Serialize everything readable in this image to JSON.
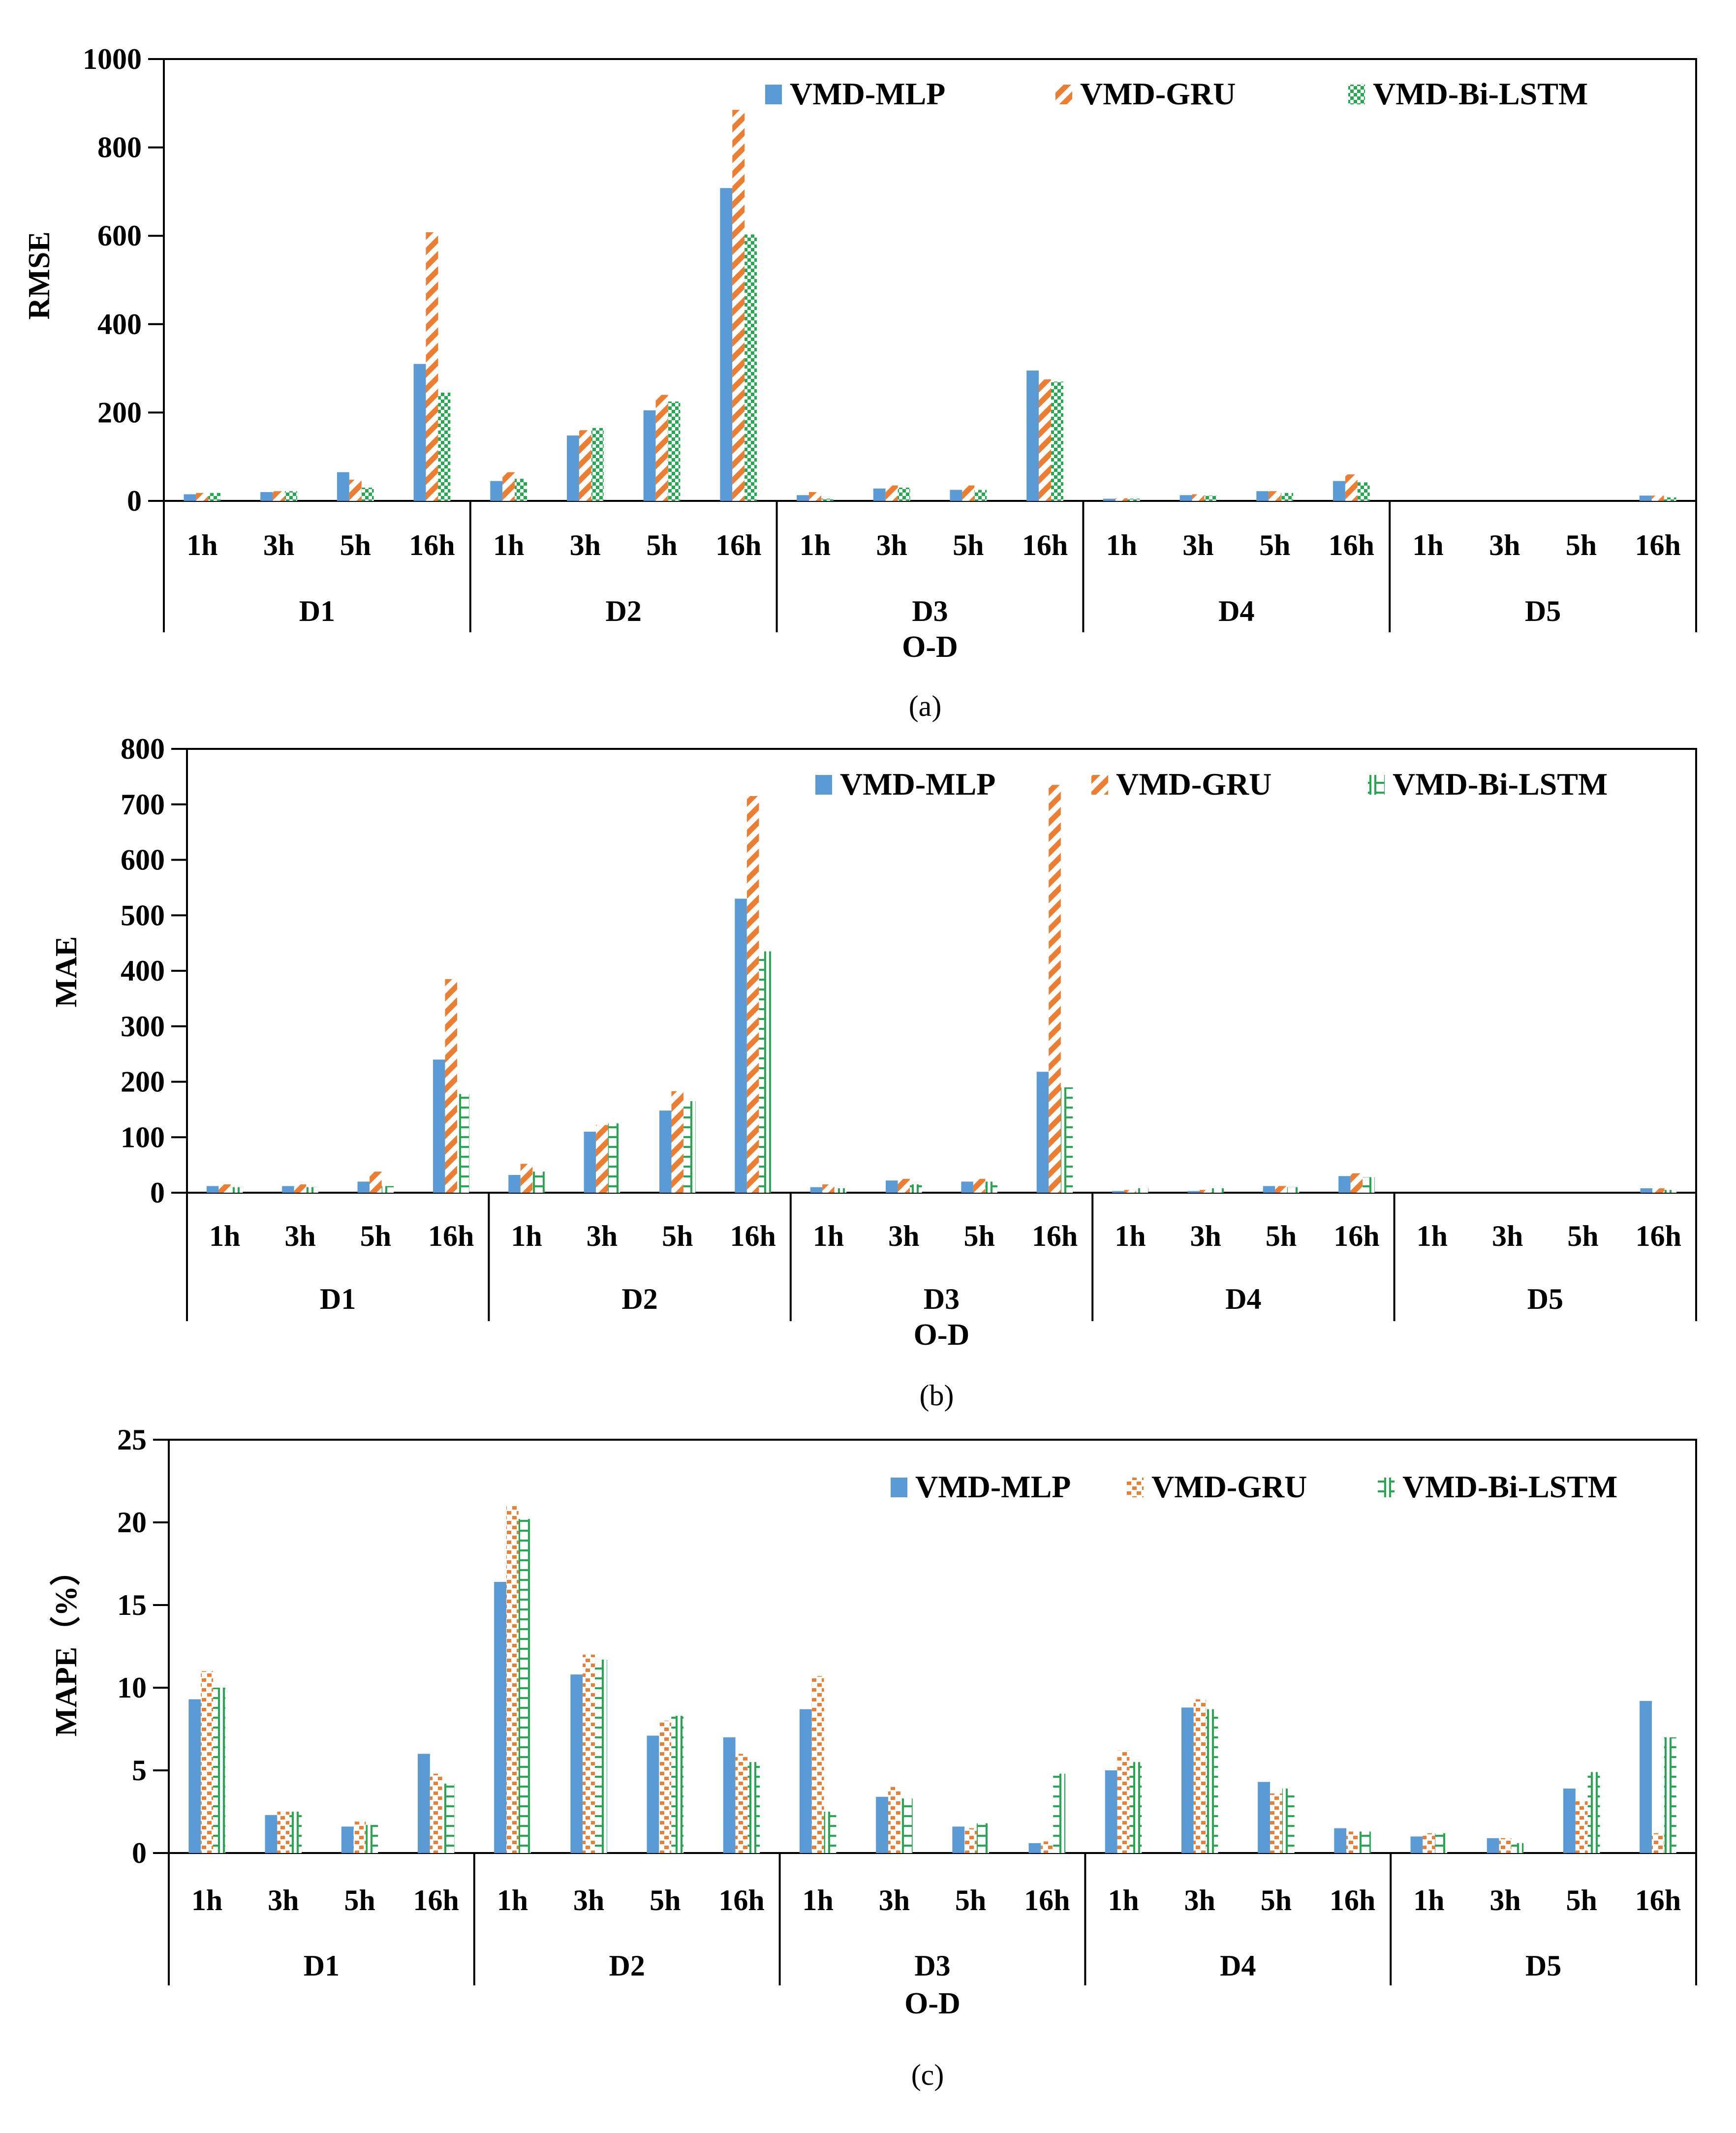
{
  "colors": {
    "mlp": "#5B9BD5",
    "gru": "#ED7D31",
    "bilstm": "#22AA4F",
    "axis": "#000000"
  },
  "chart_data": [
    {
      "type": "bar",
      "caption": "(a)",
      "ylabel": "RMSE",
      "xlabel": "O-D",
      "ylim": [
        0,
        1000
      ],
      "yticks": [
        "0",
        "200",
        "400",
        "600",
        "800",
        "1000"
      ],
      "ytick_values": [
        0,
        200,
        400,
        600,
        800,
        1000
      ],
      "groups": [
        "D1",
        "D2",
        "D3",
        "D4",
        "D5"
      ],
      "horizons": [
        "1h",
        "3h",
        "5h",
        "16h"
      ],
      "legend": [
        "VMD-MLP",
        "VMD-GRU",
        "VMD-Bi-LSTM"
      ],
      "series": [
        {
          "name": "VMD-MLP",
          "values": [
            15,
            20,
            65,
            310,
            45,
            148,
            205,
            708,
            13,
            28,
            25,
            295,
            5,
            13,
            22,
            45,
            0,
            0,
            0,
            12
          ]
        },
        {
          "name": "VMD-GRU",
          "values": [
            18,
            22,
            48,
            608,
            65,
            160,
            240,
            885,
            20,
            35,
            35,
            275,
            6,
            15,
            22,
            60,
            0,
            0,
            0,
            12
          ]
        },
        {
          "name": "VMD-Bi-LSTM",
          "values": [
            18,
            22,
            30,
            245,
            50,
            165,
            225,
            603,
            5,
            30,
            25,
            270,
            5,
            12,
            18,
            42,
            0,
            0,
            0,
            8
          ]
        }
      ]
    },
    {
      "type": "bar",
      "caption": "(b)",
      "ylabel": "MAE",
      "xlabel": "O-D",
      "ylim": [
        0,
        800
      ],
      "yticks": [
        "0",
        "100",
        "200",
        "300",
        "400",
        "500",
        "600",
        "700",
        "800"
      ],
      "ytick_values": [
        0,
        100,
        200,
        300,
        400,
        500,
        600,
        700,
        800
      ],
      "groups": [
        "D1",
        "D2",
        "D3",
        "D4",
        "D5"
      ],
      "horizons": [
        "1h",
        "3h",
        "5h",
        "16h"
      ],
      "legend": [
        "VMD-MLP",
        "VMD-GRU",
        "VMD-Bi-LSTM"
      ],
      "series": [
        {
          "name": "VMD-MLP",
          "values": [
            12,
            12,
            20,
            240,
            32,
            110,
            148,
            530,
            10,
            22,
            20,
            218,
            3,
            3,
            12,
            30,
            0,
            0,
            0,
            8
          ]
        },
        {
          "name": "VMD-GRU",
          "values": [
            15,
            15,
            38,
            385,
            52,
            122,
            183,
            715,
            15,
            25,
            25,
            735,
            5,
            5,
            12,
            35,
            0,
            0,
            0,
            8
          ]
        },
        {
          "name": "VMD-Bi-LSTM",
          "values": [
            10,
            10,
            12,
            178,
            38,
            125,
            165,
            435,
            8,
            15,
            20,
            190,
            8,
            8,
            10,
            28,
            0,
            0,
            0,
            5
          ]
        }
      ]
    },
    {
      "type": "bar",
      "caption": "(c)",
      "ylabel": "MAPE（%）",
      "xlabel": "O-D",
      "ylim": [
        0,
        25
      ],
      "yticks": [
        "0",
        "5",
        "10",
        "15",
        "20",
        "25"
      ],
      "ytick_values": [
        0,
        5,
        10,
        15,
        20,
        25
      ],
      "groups": [
        "D1",
        "D2",
        "D3",
        "D4",
        "D5"
      ],
      "horizons": [
        "1h",
        "3h",
        "5h",
        "16h"
      ],
      "legend": [
        "VMD-MLP",
        "VMD-GRU",
        "VMD-Bi-LSTM"
      ],
      "series": [
        {
          "name": "VMD-MLP",
          "values": [
            9.3,
            2.3,
            1.6,
            6.0,
            16.4,
            10.8,
            7.1,
            7.0,
            8.7,
            3.4,
            1.6,
            0.6,
            5.0,
            8.8,
            4.3,
            1.5,
            1.0,
            0.9,
            3.9,
            9.2
          ]
        },
        {
          "name": "VMD-GRU",
          "values": [
            11.0,
            2.5,
            1.9,
            4.8,
            21.0,
            12.0,
            8.0,
            6.0,
            10.7,
            4.0,
            1.5,
            0.7,
            6.2,
            9.3,
            3.6,
            1.3,
            1.2,
            0.9,
            3.2,
            1.2
          ]
        },
        {
          "name": "VMD-Bi-LSTM",
          "values": [
            10.0,
            2.5,
            1.7,
            4.2,
            20.2,
            11.7,
            8.3,
            5.5,
            2.5,
            3.3,
            1.8,
            4.8,
            5.5,
            8.7,
            3.9,
            1.3,
            1.2,
            0.6,
            4.9,
            7.0
          ]
        }
      ]
    }
  ]
}
